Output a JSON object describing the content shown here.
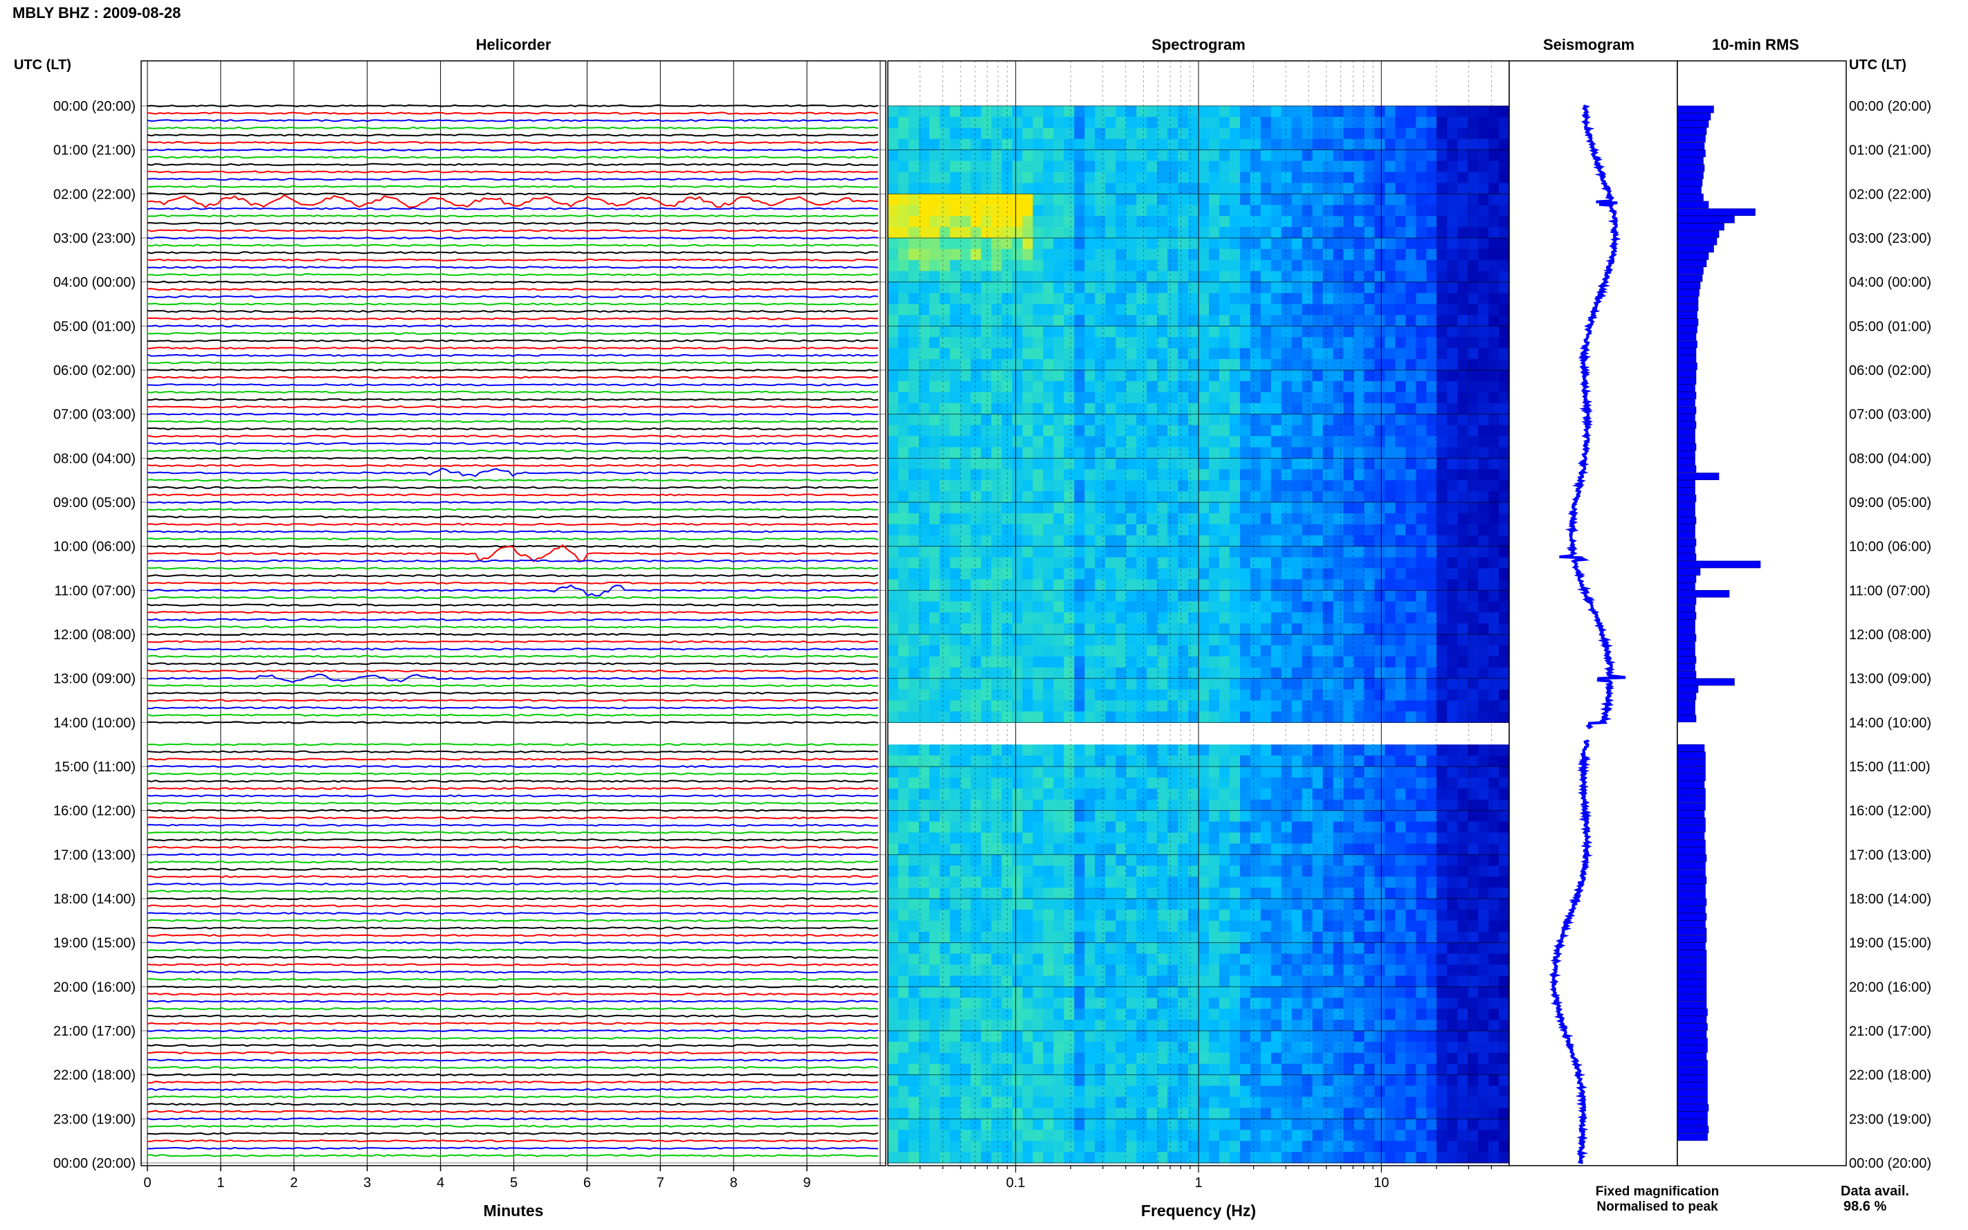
{
  "title": "MBLY BHZ : 2009-08-28",
  "panels": {
    "helicorder": "Helicorder",
    "spectrogram": "Spectrogram",
    "seismogram": "Seismogram",
    "rms": "10-min RMS"
  },
  "time_axis_label": "UTC (LT)",
  "legend": {
    "fixed": "Fixed magnification",
    "fixed_color": "#0000ff",
    "normalised": "Normalised to peak",
    "normalised_color": "#ff0000"
  },
  "data_availability": {
    "label": "Data avail.",
    "value": "98.6 %"
  },
  "colors": {
    "trace_cycle": [
      "#000000",
      "#ff0000",
      "#0000ff",
      "#00cc00"
    ],
    "seismogram": "#0000ff",
    "rms_bars": "#0000ff"
  },
  "chart_data": [
    {
      "type": "line",
      "panel": "Helicorder",
      "xlabel": "Minutes",
      "x_ticks": [
        "0",
        "1",
        "2",
        "3",
        "4",
        "5",
        "6",
        "7",
        "8",
        "9"
      ],
      "xlim": [
        0,
        10
      ],
      "rows": 144,
      "row_minutes": 10,
      "y_tick_labels": [
        "00:00 (20:00)",
        "01:00 (21:00)",
        "02:00 (22:00)",
        "03:00 (23:00)",
        "04:00 (00:00)",
        "05:00 (01:00)",
        "06:00 (02:00)",
        "07:00 (03:00)",
        "08:00 (04:00)",
        "09:00 (05:00)",
        "10:00 (06:00)",
        "11:00 (07:00)",
        "12:00 (08:00)",
        "13:00 (09:00)",
        "14:00 (10:00)",
        "15:00 (11:00)",
        "16:00 (12:00)",
        "17:00 (13:00)",
        "18:00 (14:00)",
        "19:00 (15:00)",
        "20:00 (16:00)",
        "21:00 (17:00)",
        "22:00 (18:00)",
        "23:00 (19:00)",
        "00:00 (20:00)"
      ],
      "gap_utc_hours": [
        14.15,
        14.4
      ],
      "events": [
        {
          "utc_hour": 2.17,
          "minute_start": 0.2,
          "minute_end": 9.6,
          "amplitude": 0.5
        },
        {
          "utc_hour": 8.33,
          "minute_start": 3.8,
          "minute_end": 5.0,
          "amplitude": 0.4
        },
        {
          "utc_hour": 10.17,
          "minute_start": 4.5,
          "minute_end": 6.0,
          "amplitude": 0.8
        },
        {
          "utc_hour": 11.0,
          "minute_start": 5.5,
          "minute_end": 6.5,
          "amplitude": 0.6
        },
        {
          "utc_hour": 13.0,
          "minute_start": 1.5,
          "minute_end": 4.0,
          "amplitude": 0.35
        }
      ]
    },
    {
      "type": "heatmap",
      "panel": "Spectrogram",
      "xlabel": "Frequency (Hz)",
      "x_scale": "log",
      "xlim": [
        0.02,
        50
      ],
      "x_ticks": [
        "0.1",
        "1",
        "10"
      ],
      "gap_utc_hours": [
        14.15,
        14.4
      ]
    },
    {
      "type": "line",
      "panel": "Seismogram",
      "spike_utc_hours": [
        2.2,
        10.25,
        13.0
      ]
    },
    {
      "type": "bar",
      "panel": "10-min RMS",
      "orientation": "horizontal",
      "bin_minutes": 10,
      "gap_utc_hours": [
        14.15,
        14.4
      ],
      "relative_values": [
        0.35,
        0.32,
        0.3,
        0.28,
        0.27,
        0.26,
        0.27,
        0.25,
        0.26,
        0.25,
        0.24,
        0.23,
        0.25,
        0.3,
        0.75,
        0.55,
        0.45,
        0.4,
        0.38,
        0.35,
        0.3,
        0.28,
        0.25,
        0.24,
        0.22,
        0.21,
        0.2,
        0.2,
        0.19,
        0.2,
        0.19,
        0.18,
        0.19,
        0.18,
        0.18,
        0.19,
        0.18,
        0.18,
        0.17,
        0.18,
        0.17,
        0.18,
        0.17,
        0.18,
        0.17,
        0.17,
        0.18,
        0.17,
        0.17,
        0.18,
        0.4,
        0.17,
        0.17,
        0.18,
        0.17,
        0.17,
        0.18,
        0.17,
        0.17,
        0.18,
        0.17,
        0.18,
        0.8,
        0.22,
        0.18,
        0.17,
        0.5,
        0.18,
        0.17,
        0.18,
        0.17,
        0.17,
        0.18,
        0.17,
        0.17,
        0.18,
        0.17,
        0.18,
        0.55,
        0.2,
        0.18,
        0.17,
        0.17,
        0.18,
        0.25,
        0.25,
        0.26,
        0.26,
        0.27,
        0.27,
        0.27,
        0.27,
        0.26,
        0.27,
        0.27,
        0.27,
        0.26,
        0.27,
        0.27,
        0.26,
        0.27,
        0.27,
        0.28,
        0.27,
        0.27,
        0.28,
        0.27,
        0.27,
        0.28,
        0.27,
        0.28,
        0.27,
        0.28,
        0.28,
        0.27,
        0.28,
        0.28,
        0.28,
        0.28,
        0.28,
        0.28,
        0.28,
        0.28,
        0.29,
        0.28,
        0.29,
        0.28,
        0.29,
        0.29,
        0.28,
        0.29,
        0.29,
        0.29,
        0.29,
        0.29,
        0.29,
        0.3,
        0.29,
        0.29,
        0.3,
        0.29
      ]
    }
  ]
}
